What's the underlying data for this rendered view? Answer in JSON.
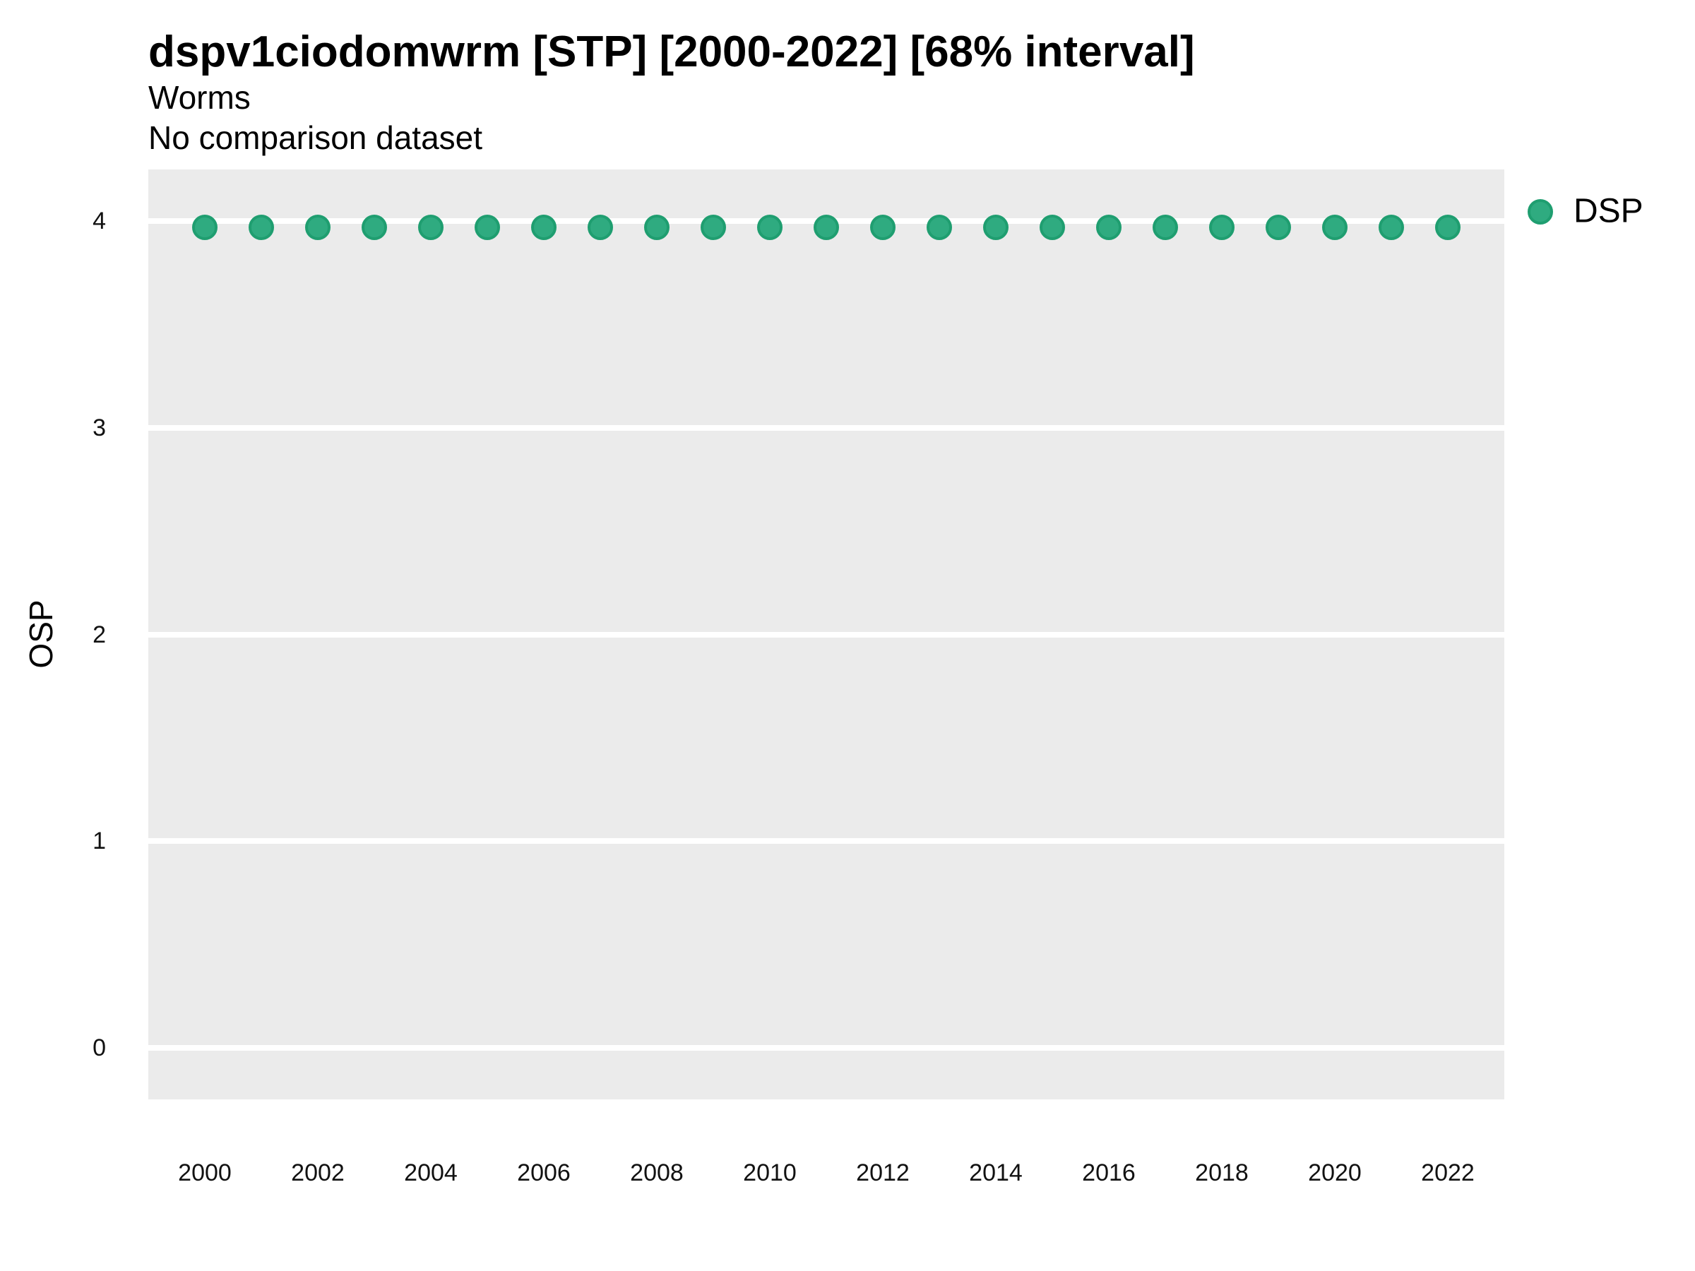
{
  "header": {
    "title": "dspv1ciodomwrm [STP] [2000-2022] [68% interval]",
    "subtitle": "Worms",
    "note": "No comparison dataset"
  },
  "chart_data": {
    "type": "scatter",
    "title": "dspv1ciodomwrm [STP] [2000-2022] [68% interval]",
    "subtitle": "Worms",
    "annotation": "No comparison dataset",
    "xlabel": "",
    "ylabel": "OSP",
    "x": [
      2000,
      2001,
      2002,
      2003,
      2004,
      2005,
      2006,
      2007,
      2008,
      2009,
      2010,
      2011,
      2012,
      2013,
      2014,
      2015,
      2016,
      2017,
      2018,
      2019,
      2020,
      2021,
      2022
    ],
    "series": [
      {
        "name": "DSP",
        "values": [
          3.97,
          3.97,
          3.97,
          3.97,
          3.97,
          3.97,
          3.97,
          3.97,
          3.97,
          3.97,
          3.97,
          3.97,
          3.97,
          3.97,
          3.97,
          3.97,
          3.97,
          3.97,
          3.97,
          3.97,
          3.97,
          3.97,
          3.97
        ]
      }
    ],
    "xlim": [
      1999,
      2023
    ],
    "ylim": [
      -0.25,
      4.25
    ],
    "xticks": [
      2000,
      2002,
      2004,
      2006,
      2008,
      2010,
      2012,
      2014,
      2016,
      2018,
      2020,
      2022
    ],
    "yticks": [
      0,
      1,
      2,
      3,
      4
    ],
    "grid": "major horizontal white lines on gray panel, no minor gridlines, no axis tick marks",
    "legend_position": "right-top",
    "colors": {
      "point_fill": "#2fab80",
      "point_stroke": "#1f9e70",
      "panel_background": "#ebebeb",
      "gridline": "#ffffff",
      "text": "#000000"
    }
  },
  "legend": {
    "items": [
      {
        "label": "DSP",
        "fill": "#2fab80",
        "stroke": "#1f9e70"
      }
    ]
  }
}
